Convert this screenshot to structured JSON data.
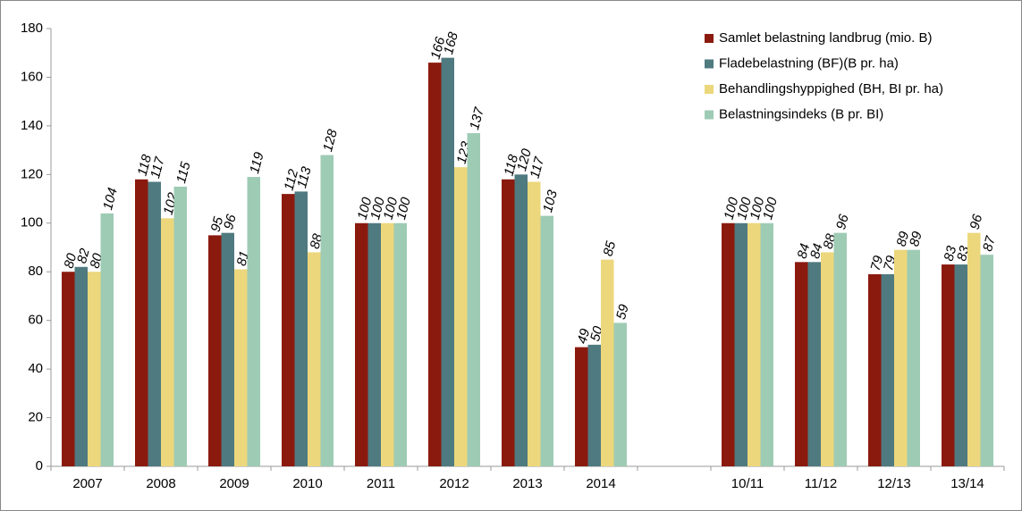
{
  "chart_data": {
    "type": "bar",
    "categories": [
      "2007",
      "2008",
      "2009",
      "2010",
      "2011",
      "2012",
      "2013",
      "2014",
      null,
      "10/11",
      "11/12",
      "12/13",
      "13/14"
    ],
    "series": [
      {
        "name": "Samlet belastning landbrug (mio. B)",
        "color": "#8b1a0e",
        "values": [
          80,
          118,
          95,
          112,
          100,
          166,
          118,
          49,
          null,
          100,
          84,
          79,
          83
        ]
      },
      {
        "name": "Fladebelastning (BF)(B pr. ha)",
        "color": "#4f7a80",
        "values": [
          82,
          117,
          96,
          113,
          100,
          168,
          120,
          50,
          null,
          100,
          84,
          79,
          83
        ]
      },
      {
        "name": "Behandlingshyppighed (BH, BI pr. ha)",
        "color": "#ecd77c",
        "values": [
          80,
          102,
          81,
          88,
          100,
          123,
          117,
          85,
          null,
          100,
          88,
          89,
          96
        ]
      },
      {
        "name": "Belastningsindeks (B pr. BI)",
        "color": "#9ecbb4",
        "values": [
          104,
          115,
          119,
          128,
          100,
          137,
          103,
          59,
          null,
          100,
          96,
          89,
          87
        ]
      }
    ],
    "ylim": [
      0,
      180
    ],
    "yticks": [
      0,
      20,
      40,
      60,
      80,
      100,
      120,
      140,
      160,
      180
    ],
    "legend": "upper right",
    "grid": false
  }
}
